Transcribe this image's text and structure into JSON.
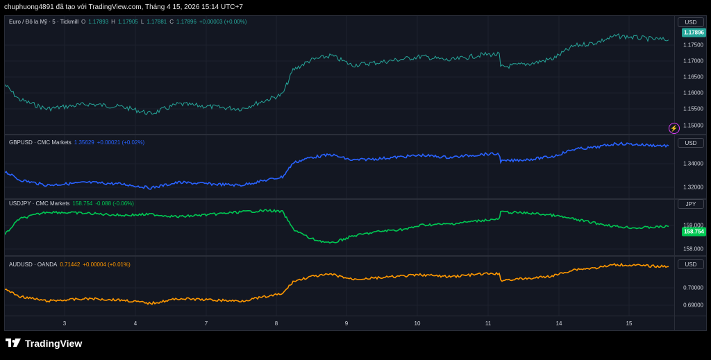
{
  "header": {
    "caption": "chuphuong4891 đã tạo với TradingView.com, Tháng 4 15, 2026 15:14 UTC+7"
  },
  "panes": [
    {
      "symbol": "Euro / Đô la Mỹ · 5 · Tickmill",
      "ohlc": {
        "o_label": "O",
        "o": "1.17893",
        "h_label": "H",
        "h": "1.17905",
        "l_label": "L",
        "l": "1.17881",
        "c_label": "C",
        "c": "1.17896",
        "change": "+0.00003 (+0.00%)"
      },
      "currency": "USD",
      "last_price": "1.17896",
      "ticks": [
        "1.17500",
        "1.17000",
        "1.16500",
        "1.16000",
        "1.15500",
        "1.15000"
      ],
      "color": "#26a69a"
    },
    {
      "symbol": "GBPUSD · CMC Markets",
      "value": "1.35629",
      "change": "+0.00021 (+0.02%)",
      "currency": "USD",
      "ticks": [
        "1.34000",
        "1.32000"
      ],
      "color": "#2962ff"
    },
    {
      "symbol": "USDJPY · CMC Markets",
      "value": "158.754",
      "change": "-0.088 (-0.06%)",
      "currency": "JPY",
      "last_price": "158.754",
      "ticks": [
        "159.000",
        "158.000"
      ],
      "color": "#00c853"
    },
    {
      "symbol": "AUDUSD · OANDA",
      "value": "0.71442",
      "change": "+0.00004 (+0.01%)",
      "currency": "USD",
      "ticks": [
        "0.70000",
        "0.69000"
      ],
      "color": "#ff9800"
    }
  ],
  "time_axis": [
    "3",
    "4",
    "7",
    "8",
    "9",
    "10",
    "11",
    "14",
    "15"
  ],
  "footer": {
    "brand": "TradingView"
  }
}
